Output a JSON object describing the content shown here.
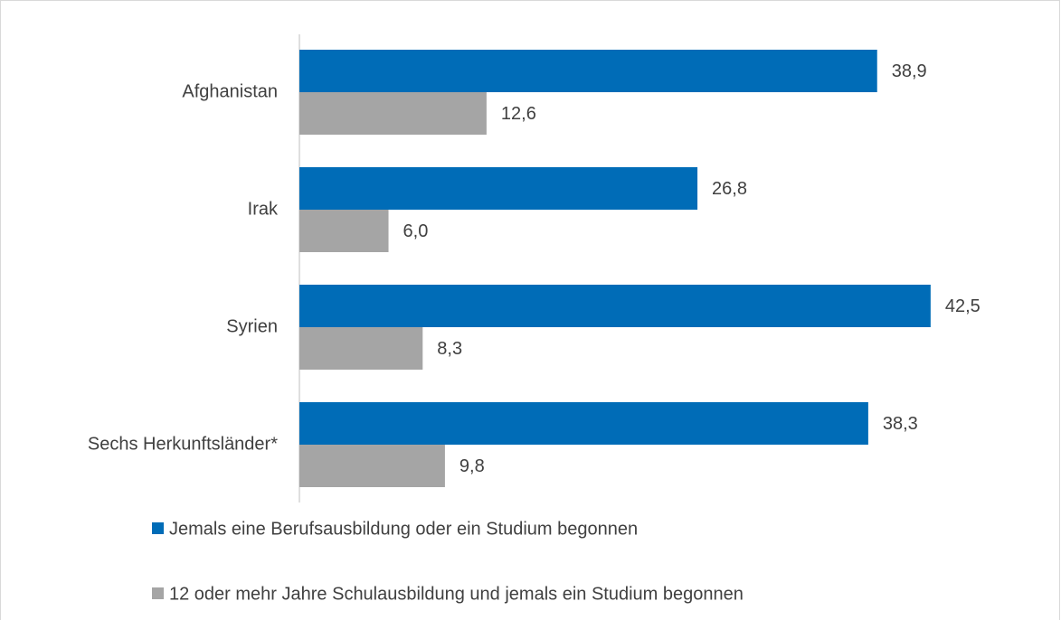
{
  "chart_data": {
    "type": "bar",
    "orientation": "horizontal",
    "categories": [
      "Afghanistan",
      "Irak",
      "Syrien",
      "Sechs Herkunftsländer*"
    ],
    "series": [
      {
        "name": "Jemals eine Berufsausbildung oder ein Studium begonnen",
        "color": "#006cb7",
        "values": [
          38.9,
          26.8,
          42.5,
          38.3
        ],
        "value_labels": [
          "38,9",
          "26,8",
          "42,5",
          "38,3"
        ]
      },
      {
        "name": "12 oder mehr Jahre Schulausbildung und jemals ein Studium begonnen",
        "color": "#a5a5a5",
        "values": [
          12.6,
          6.0,
          8.3,
          9.8
        ],
        "value_labels": [
          "12,6",
          "6,0",
          "8,3",
          "9,8"
        ]
      }
    ],
    "legend": "bottom"
  }
}
